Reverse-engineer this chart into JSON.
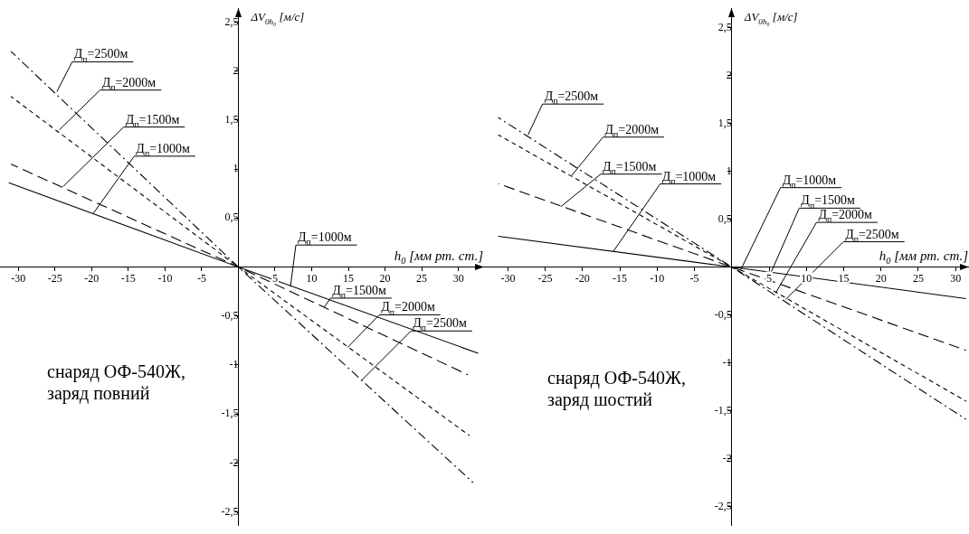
{
  "chart_data": [
    {
      "type": "line",
      "xlabel": "h$_{0}$ [мм рт. ст.]",
      "ylabel": "ΔV$_{0h₀}$ [м/с]",
      "xlim": [
        -32.5,
        33.5
      ],
      "ylim": [
        -2.64,
        2.64
      ],
      "xticks": [
        -30,
        -25,
        -20,
        -15,
        -10,
        -5,
        5,
        10,
        15,
        20,
        25,
        30
      ],
      "yticks": [
        {
          "value": -2.5,
          "label": "-2,5"
        },
        -2,
        {
          "value": -1.5,
          "label": "-1,5"
        },
        -1,
        {
          "value": -0.5,
          "label": "-0,5"
        },
        {
          "value": 0.5,
          "label": "0,5"
        },
        1,
        {
          "value": 1.5,
          "label": "1,5"
        },
        2,
        {
          "value": 2.5,
          "label": "2,5"
        }
      ],
      "grid": false,
      "legend": false,
      "marker": "none",
      "series": [
        {
          "color": "#000000",
          "line_style": "solid",
          "x": [
            -31.3,
            0,
            32.7
          ],
          "values": [
            0.86,
            0,
            -0.88
          ]
        },
        {
          "color": "#000000",
          "line_style": "dashed",
          "x": [
            -31,
            0,
            31.3
          ],
          "values": [
            1.05,
            0,
            -1.1
          ]
        },
        {
          "color": "#000000",
          "line_style": "dotted",
          "x": [
            -31,
            0,
            31.5
          ],
          "values": [
            1.74,
            0,
            -1.72
          ]
        },
        {
          "color": "#000000",
          "line_style": "dashdot",
          "x": [
            -31,
            0,
            32
          ],
          "values": [
            2.2,
            0,
            -2.2
          ]
        }
      ],
      "annotations": [
        {
          "text": "Д$_{п}$=2500м",
          "x": -24.75,
          "y": 1.79
        },
        {
          "text": "Д$_{п}$=2000м",
          "x": -24.4,
          "y": 1.4
        },
        {
          "text": "Д$_{п}$=1500м",
          "x": -23.9,
          "y": 0.82
        },
        {
          "text": "Д$_{п}$=1000м",
          "x": -19.75,
          "y": 0.55
        },
        {
          "text": "Д$_{п}$=1000м",
          "x": 7.1,
          "y": -0.2
        },
        {
          "text": "Д$_{п}$=1500м",
          "x": 11.7,
          "y": -0.41
        },
        {
          "text": "Д$_{п}$=2000м",
          "x": 14.9,
          "y": -0.82
        },
        {
          "text": "Д$_{п}$=2500м",
          "x": 16.75,
          "y": -1.16
        },
        "снаряд ОФ-540Ж,\nзаряд повний"
      ]
    },
    {
      "type": "line",
      "xlabel": "h$_{0}$ [мм рт. ст.]",
      "ylabel": "ΔV$_{0h₀}$ [м/с]",
      "xlim": [
        -33.2,
        31.8
      ],
      "ylim": [
        -2.7,
        2.7
      ],
      "xticks": [
        -30,
        -25,
        -20,
        -15,
        -10,
        -5,
        5,
        10,
        15,
        20,
        25,
        30
      ],
      "yticks": [
        {
          "value": -2.5,
          "label": "-2,5"
        },
        -2,
        {
          "value": -1.5,
          "label": "-1,5"
        },
        -1,
        {
          "value": -0.5,
          "label": "-0,5"
        },
        {
          "value": 0.5,
          "label": "0,5"
        },
        1,
        {
          "value": 1.5,
          "label": "1,5"
        },
        2,
        {
          "value": 2.5,
          "label": "2,5"
        }
      ],
      "grid": false,
      "legend": false,
      "marker": "none",
      "series": [
        {
          "color": "#000000",
          "line_style": "solid",
          "x": [
            -31.3,
            0,
            31.4
          ],
          "values": [
            0.32,
            0,
            -0.33
          ]
        },
        {
          "color": "#000000",
          "line_style": "dashed",
          "x": [
            -31.3,
            0,
            31.4
          ],
          "values": [
            0.87,
            0,
            -0.87
          ]
        },
        {
          "color": "#000000",
          "line_style": "dotted",
          "x": [
            -31.3,
            0,
            31.4
          ],
          "values": [
            1.38,
            0,
            -1.4
          ]
        },
        {
          "color": "#000000",
          "line_style": "dashdot",
          "x": [
            -31.3,
            0,
            31.4
          ],
          "values": [
            1.56,
            0,
            -1.59
          ]
        }
      ],
      "annotations": [
        {
          "text": "Д$_{п}$=2500м",
          "x": -27.3,
          "y": 1.38
        },
        {
          "text": "Д$_{п}$=2000м",
          "x": -21.5,
          "y": 0.95
        },
        {
          "text": "Д$_{п}$=1500м",
          "x": -22.9,
          "y": 0.63
        },
        {
          "text": "Д$_{п}$=1000м",
          "x": -15.9,
          "y": 0.16
        },
        {
          "text": "Д$_{п}$=1000м",
          "x": 1.2,
          "y": -0.03
        },
        {
          "text": "Д$_{п}$=1500м",
          "x": 4.8,
          "y": -0.14
        },
        {
          "text": "Д$_{п}$=2000м",
          "x": 5.9,
          "y": -0.27
        },
        {
          "text": "Д$_{п}$=2500м",
          "x": 7.2,
          "y": -0.34
        },
        "снаряд ОФ-540Ж,\nзаряд шостий"
      ]
    }
  ]
}
